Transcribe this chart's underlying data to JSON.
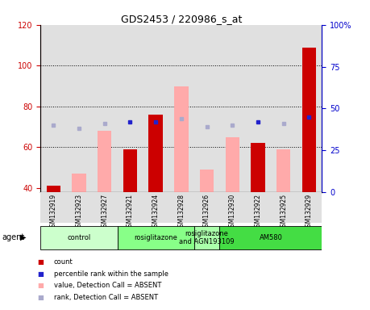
{
  "title": "GDS2453 / 220986_s_at",
  "samples": [
    "GSM132919",
    "GSM132923",
    "GSM132927",
    "GSM132921",
    "GSM132924",
    "GSM132928",
    "GSM132926",
    "GSM132930",
    "GSM132922",
    "GSM132925",
    "GSM132929"
  ],
  "count_values": [
    41,
    0,
    0,
    59,
    76,
    0,
    0,
    0,
    62,
    0,
    109
  ],
  "pink_values": [
    41,
    47,
    68,
    0,
    0,
    90,
    49,
    65,
    0,
    59,
    0
  ],
  "blue_sq_present": [
    0,
    0,
    0,
    42,
    42,
    0,
    0,
    0,
    42,
    0,
    45
  ],
  "blue_sq_absent": [
    40,
    38,
    41,
    0,
    0,
    44,
    39,
    40,
    0,
    41,
    0
  ],
  "ylim_left": [
    38,
    120
  ],
  "ylim_right": [
    0,
    100
  ],
  "yticks_left": [
    40,
    60,
    80,
    100,
    120
  ],
  "yticks_right": [
    0,
    25,
    50,
    75,
    100
  ],
  "ytick_labels_right": [
    "0",
    "25",
    "50",
    "75",
    "100%"
  ],
  "group_data": [
    {
      "label": "control",
      "cols": [
        0,
        1,
        2
      ],
      "color": "#ccffcc"
    },
    {
      "label": "rosiglitazone",
      "cols": [
        3,
        4,
        5
      ],
      "color": "#88ff88"
    },
    {
      "label": "rosiglitazone\nand AGN193109",
      "cols": [
        6
      ],
      "color": "#aaffaa"
    },
    {
      "label": "AM580",
      "cols": [
        7,
        8,
        9,
        10
      ],
      "color": "#44dd44"
    }
  ],
  "bar_color_red": "#cc0000",
  "bar_color_pink": "#ffaaaa",
  "sq_color_blue": "#2222cc",
  "sq_color_light_blue": "#aaaacc",
  "bg_color": "#e0e0e0",
  "left_tick_color": "#cc0000",
  "right_tick_color": "#0000cc"
}
